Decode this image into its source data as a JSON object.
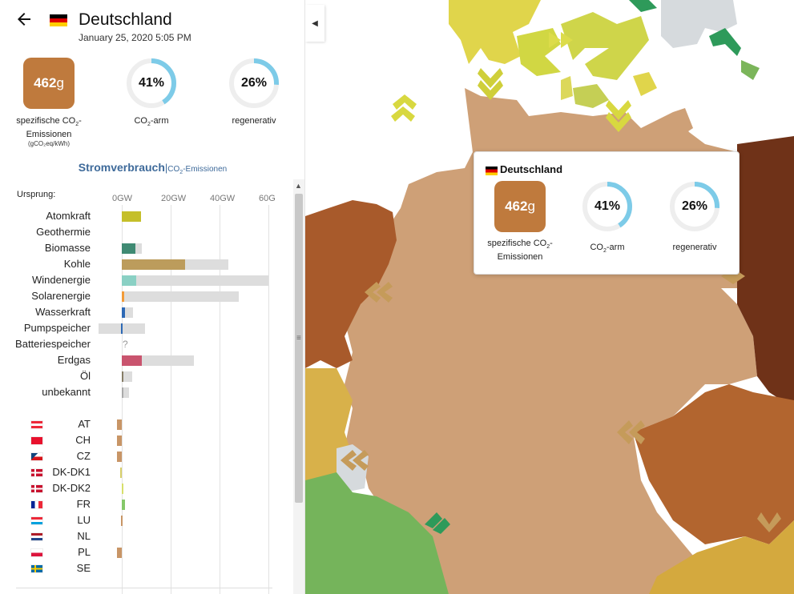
{
  "header": {
    "zone_name": "Deutschland",
    "datetime": "January 25, 2020 5:05 PM"
  },
  "metrics": {
    "co2_value": "462",
    "co2_unit": "g",
    "co2_label_1": "spezifische CO",
    "co2_label_sub": "2",
    "co2_label_2": "-",
    "co2_label_3": "Emissionen",
    "co2_unit_label": "(gCO₂eq/kWh)",
    "low_carbon_pct": "41%",
    "low_carbon_fraction": 0.41,
    "low_carbon_label_a": "CO",
    "low_carbon_label_sub": "2",
    "low_carbon_label_b": "-arm",
    "renewable_pct": "26%",
    "renewable_fraction": 0.26,
    "renewable_label": "regenerativ"
  },
  "tabs": {
    "active": "Stromverbrauch",
    "separator": "|",
    "inactive_a": "CO",
    "inactive_sub": "2",
    "inactive_b": "-Emissionen"
  },
  "chart": {
    "origin_label": "Ursprung:",
    "axis_ticks": [
      "0GW",
      "20GW",
      "40GW",
      "60G"
    ],
    "rows": [
      {
        "label": "Atomkraft",
        "production": 8,
        "capacity": 0,
        "color": "#c5bf2a"
      },
      {
        "label": "Geothermie",
        "production": 0,
        "capacity": 0,
        "color": "#b0b0b0"
      },
      {
        "label": "Biomasse",
        "production": 5.5,
        "capacity": 8.3,
        "color": "#3f8a73"
      },
      {
        "label": "Kohle",
        "production": 26,
        "capacity": 43.5,
        "color": "#bc9c5c"
      },
      {
        "label": "Windenergie",
        "production": 6,
        "capacity": 60,
        "color": "#8ad0c4"
      },
      {
        "label": "Solarenergie",
        "production": 1,
        "capacity": 48,
        "color": "#f29b39"
      },
      {
        "label": "Wasserkraft",
        "production": 1.3,
        "capacity": 4.7,
        "color": "#2d69b5"
      },
      {
        "label": "Pumpspeicher",
        "production": -0.4,
        "capacity": 9.5,
        "capacity_neg": -9.5,
        "color": "#2d69b5"
      },
      {
        "label": "Batteriespeicher",
        "production": 0,
        "capacity": 0,
        "color": "#b0b0b0",
        "unknown": "?"
      },
      {
        "label": "Erdgas",
        "production": 8.3,
        "capacity": 29.5,
        "color": "#c9546e"
      },
      {
        "label": "Öl",
        "production": 0.5,
        "capacity": 4.3,
        "color": "#867d66"
      },
      {
        "label": "unbekannt",
        "production": 0.5,
        "capacity": 3,
        "color": "#aaaaaa"
      }
    ],
    "exchanges": [
      {
        "label": "AT",
        "value": -1.9,
        "color": "#c89566",
        "flag": "at"
      },
      {
        "label": "CH",
        "value": -1.9,
        "color": "#c89566",
        "flag": "ch"
      },
      {
        "label": "CZ",
        "value": -1.9,
        "color": "#c89566",
        "flag": "cz"
      },
      {
        "label": "DK-DK1",
        "value": -0.5,
        "color": "#d7cf6a",
        "flag": "dk"
      },
      {
        "label": "DK-DK2",
        "value": 0.4,
        "color": "#d7df6a",
        "flag": "dk"
      },
      {
        "label": "FR",
        "value": 1.3,
        "color": "#86c86a",
        "flag": "fr"
      },
      {
        "label": "LU",
        "value": -0.3,
        "color": "#c89566",
        "flag": "lu"
      },
      {
        "label": "NL",
        "value": 0,
        "color": "#c89566",
        "flag": "nl"
      },
      {
        "label": "PL",
        "value": -1.9,
        "color": "#c89566",
        "flag": "pl"
      },
      {
        "label": "SE",
        "value": 0,
        "color": "#c8c86a",
        "flag": "se"
      }
    ]
  },
  "tooltip": {
    "zone_name": "Deutschland",
    "co2_value": "462",
    "co2_unit": "g",
    "co2_label_1": "spezifische CO",
    "co2_label_sub": "2",
    "co2_label_2": "-",
    "co2_label_3": "Emissionen",
    "low_carbon_pct": "41%",
    "low_carbon_label_a": "CO",
    "low_carbon_label_sub": "2",
    "low_carbon_label_b": "-arm",
    "renewable_pct": "26%",
    "renewable_label": "regenerativ"
  },
  "colors": {
    "accent": "#3e6a9a",
    "ring": "#7dcbe8",
    "ring_bg": "#eeeeee",
    "co2_square": "#bf7a3d"
  }
}
